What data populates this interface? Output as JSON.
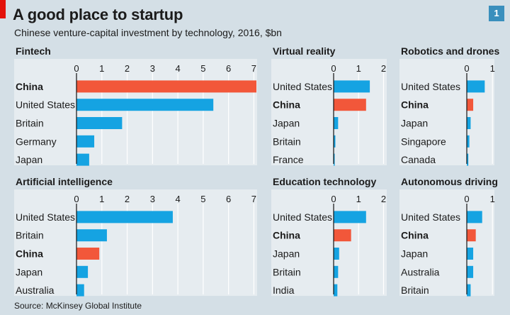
{
  "title": "A good place to startup",
  "subtitle": "Chinese venture-capital investment by technology, 2016, $bn",
  "badge": "1",
  "source": "Source: McKinsey Global Institute",
  "colors": {
    "background": "#d4dfe6",
    "panel": "#e6ecf0",
    "bar_other": "#15a3e2",
    "bar_china": "#f2573a",
    "axis": "#121212",
    "red_tag": "#e3120b",
    "badge": "#3a8fbd"
  },
  "chart_data": [
    {
      "type": "bar",
      "orientation": "horizontal",
      "title": "Fintech",
      "categories": [
        "China",
        "United States",
        "Britain",
        "Germany",
        "Japan"
      ],
      "values": [
        7.1,
        5.4,
        1.8,
        0.7,
        0.5
      ],
      "highlight": "China",
      "xlim": [
        0,
        7.1
      ],
      "ticks": [
        "0",
        "1",
        "2",
        "3",
        "4",
        "5",
        "6",
        "7"
      ]
    },
    {
      "type": "bar",
      "orientation": "horizontal",
      "title": "Virtual reality",
      "categories": [
        "United States",
        "China",
        "Japan",
        "Britain",
        "France"
      ],
      "values": [
        1.45,
        1.3,
        0.18,
        0.07,
        0.03
      ],
      "highlight": "China",
      "xlim": [
        0,
        2.1
      ],
      "ticks": [
        "0",
        "1",
        "2"
      ]
    },
    {
      "type": "bar",
      "orientation": "horizontal",
      "title": "Robotics and drones",
      "categories": [
        "United States",
        "China",
        "Japan",
        "Singapore",
        "Canada"
      ],
      "values": [
        0.7,
        0.25,
        0.15,
        0.1,
        0.06
      ],
      "highlight": "China",
      "xlim": [
        0,
        1.05
      ],
      "ticks": [
        "0",
        "1"
      ]
    },
    {
      "type": "bar",
      "orientation": "horizontal",
      "title": "Artificial intelligence",
      "categories": [
        "United States",
        "Britain",
        "China",
        "Japan",
        "Australia"
      ],
      "values": [
        3.8,
        1.2,
        0.9,
        0.45,
        0.3
      ],
      "highlight": "China",
      "xlim": [
        0,
        7.1
      ],
      "ticks": [
        "0",
        "1",
        "2",
        "3",
        "4",
        "5",
        "6",
        "7"
      ]
    },
    {
      "type": "bar",
      "orientation": "horizontal",
      "title": "Education technology",
      "categories": [
        "United States",
        "China",
        "Japan",
        "Britain",
        "India"
      ],
      "values": [
        1.3,
        0.7,
        0.22,
        0.18,
        0.15
      ],
      "highlight": "China",
      "xlim": [
        0,
        2.1
      ],
      "ticks": [
        "0",
        "1",
        "2"
      ]
    },
    {
      "type": "bar",
      "orientation": "horizontal",
      "title": "Autonomous driving",
      "categories": [
        "United States",
        "China",
        "Japan",
        "Australia",
        "Britain"
      ],
      "values": [
        0.6,
        0.35,
        0.25,
        0.25,
        0.15
      ],
      "highlight": "China",
      "xlim": [
        0,
        1.05
      ],
      "ticks": [
        "0",
        "1"
      ]
    }
  ]
}
